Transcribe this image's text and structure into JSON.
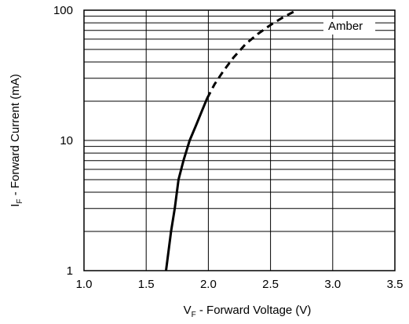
{
  "chart_data": {
    "type": "line",
    "title": "",
    "xlabel": {
      "main": "V",
      "sub": "F",
      "rest": " - Forward Voltage (V)"
    },
    "ylabel": {
      "main": "I",
      "sub": "F",
      "rest": " - Forward Current (mA)"
    },
    "xlim": [
      1.0,
      3.5
    ],
    "ylim": [
      1,
      100
    ],
    "yscale": "log",
    "grid": true,
    "x_ticks": [
      "1.0",
      "1.5",
      "2.0",
      "2.5",
      "3.0",
      "3.5"
    ],
    "x_tick_values": [
      1.0,
      1.5,
      2.0,
      2.5,
      3.0,
      3.5
    ],
    "y_ticks": [
      "1",
      "10",
      "100"
    ],
    "y_tick_values": [
      1,
      10,
      100
    ],
    "legend_position": "top-right",
    "series": [
      {
        "name": "Amber",
        "color": "#000000",
        "segments": [
          {
            "style": "solid",
            "points": [
              [
                1.66,
                1
              ],
              [
                1.7,
                2
              ],
              [
                1.73,
                3
              ],
              [
                1.76,
                5
              ],
              [
                1.8,
                7
              ],
              [
                1.85,
                10
              ],
              [
                1.9,
                13
              ],
              [
                1.95,
                17
              ],
              [
                1.99,
                21
              ]
            ]
          },
          {
            "style": "dashed",
            "points": [
              [
                1.99,
                21
              ],
              [
                2.05,
                27
              ],
              [
                2.12,
                34
              ],
              [
                2.2,
                43
              ],
              [
                2.3,
                55
              ],
              [
                2.4,
                66
              ],
              [
                2.5,
                77
              ],
              [
                2.6,
                88
              ],
              [
                2.71,
                100
              ]
            ]
          }
        ]
      }
    ]
  }
}
